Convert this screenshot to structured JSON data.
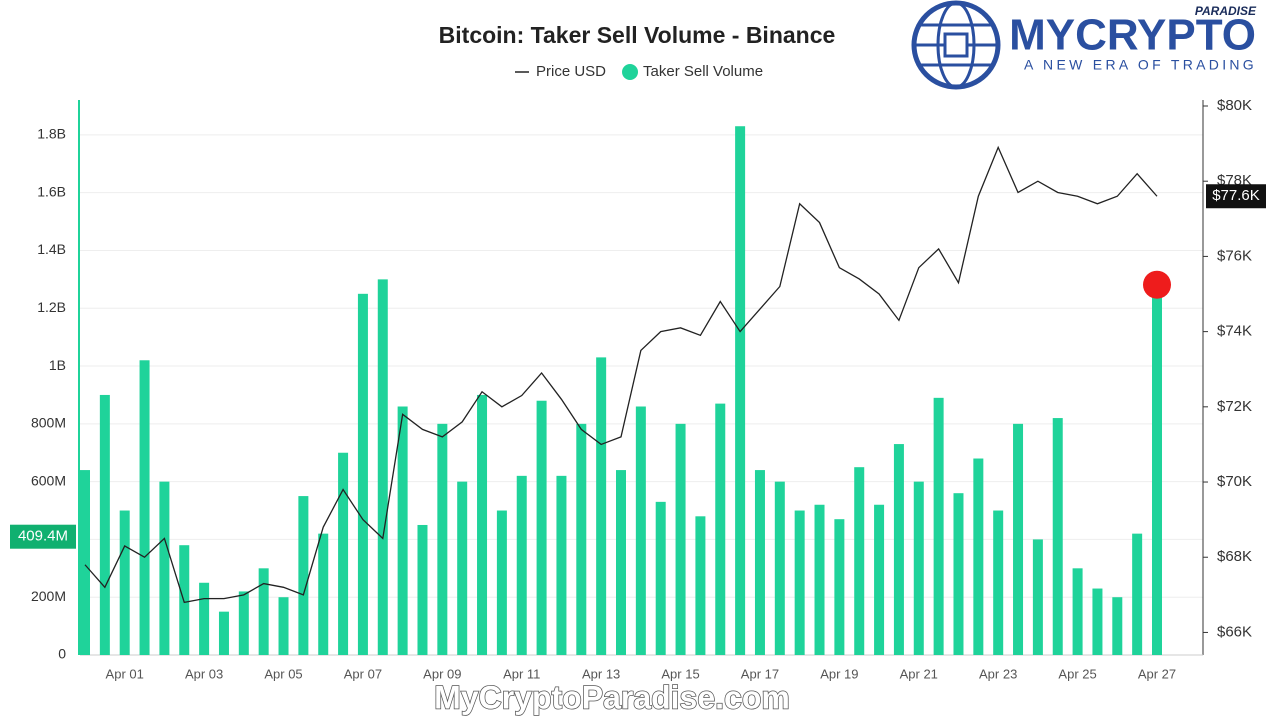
{
  "chart_data": {
    "type": "bar",
    "title": "Bitcoin: Taker Sell Volume - Binance",
    "categories": [
      null,
      null,
      "Apr 01",
      null,
      null,
      null,
      "Apr 03",
      null,
      null,
      null,
      "Apr 05",
      null,
      null,
      null,
      "Apr 07",
      null,
      null,
      null,
      "Apr 09",
      null,
      null,
      null,
      "Apr 11",
      null,
      null,
      null,
      "Apr 13",
      null,
      null,
      null,
      "Apr 15",
      null,
      null,
      null,
      "Apr 17",
      null,
      null,
      null,
      "Apr 19",
      null,
      null,
      null,
      "Apr 21",
      null,
      null,
      null,
      "Apr 23",
      null,
      null,
      null,
      "Apr 25",
      null,
      null,
      null,
      "Apr 27"
    ],
    "series": [
      {
        "name": "Price USD",
        "type": "line",
        "axis": "y2",
        "color": "#222222",
        "values": [
          67800,
          67200,
          68300,
          68000,
          68500,
          66800,
          66900,
          66900,
          67000,
          67300,
          67200,
          67000,
          68800,
          69800,
          69000,
          68500,
          71800,
          71400,
          71200,
          71600,
          72400,
          72000,
          72300,
          72900,
          72200,
          71400,
          71000,
          71200,
          73500,
          74000,
          74100,
          73900,
          74800,
          74000,
          74600,
          75200,
          77400,
          76900,
          75700,
          75400,
          75000,
          74300,
          75700,
          76200,
          75300,
          77600,
          78900,
          77700,
          78000,
          77700,
          77600,
          77400,
          77600,
          78200,
          77600
        ]
      },
      {
        "name": "Taker Sell Volume",
        "type": "bar",
        "color": "#1fd39a",
        "values": [
          640000000,
          900000000,
          500000000,
          1020000000,
          600000000,
          380000000,
          250000000,
          150000000,
          220000000,
          300000000,
          200000000,
          550000000,
          420000000,
          700000000,
          1250000000,
          1300000000,
          860000000,
          450000000,
          800000000,
          600000000,
          900000000,
          500000000,
          620000000,
          880000000,
          620000000,
          800000000,
          1030000000,
          640000000,
          860000000,
          530000000,
          800000000,
          480000000,
          870000000,
          1830000000,
          640000000,
          600000000,
          500000000,
          520000000,
          470000000,
          650000000,
          520000000,
          730000000,
          600000000,
          890000000,
          560000000,
          680000000,
          500000000,
          800000000,
          400000000,
          820000000,
          300000000,
          230000000,
          200000000,
          420000000,
          1240000000
        ]
      }
    ],
    "ylim": [
      0,
      1900000000
    ],
    "yticks": [
      0,
      {
        "value": 200000000,
        "label": "200M"
      },
      {
        "value": 400000000,
        "label": "400M"
      },
      {
        "value": 600000000,
        "label": "600M"
      },
      {
        "value": 800000000,
        "label": "800M"
      },
      {
        "value": 1000000000,
        "label": "1B"
      },
      {
        "value": 1200000000,
        "label": "1.2B"
      },
      {
        "value": 1400000000,
        "label": "1.4B"
      },
      {
        "value": 1600000000,
        "label": "1.6B"
      },
      {
        "value": 1800000000,
        "label": "1.8B"
      }
    ],
    "y2lim": [
      65400,
      80000
    ],
    "y2ticks": [
      {
        "value": 66000,
        "label": "$66K"
      },
      {
        "value": 68000,
        "label": "$68K"
      },
      {
        "value": 70000,
        "label": "$70K"
      },
      {
        "value": 72000,
        "label": "$72K"
      },
      {
        "value": 74000,
        "label": "$74K"
      },
      {
        "value": 76000,
        "label": "$76K"
      },
      {
        "value": 78000,
        "label": "$78K"
      },
      {
        "value": 80000,
        "label": "$80K"
      }
    ],
    "grid": true,
    "legend": "top",
    "annotations": [
      {
        "axis": "y",
        "value": 409400000,
        "label": "409.4M",
        "color": "#10b070"
      },
      {
        "axis": "y2",
        "value": 77600,
        "label": "$77.6K",
        "color": "#111111"
      }
    ],
    "highlight_color": "#ee1c1c"
  },
  "branding": {
    "logo_top": "PARADISE",
    "logo_main": "MYCRYPTO",
    "tagline": "A NEW ERA OF TRADING",
    "watermark": "MyCryptoParadise.com"
  }
}
